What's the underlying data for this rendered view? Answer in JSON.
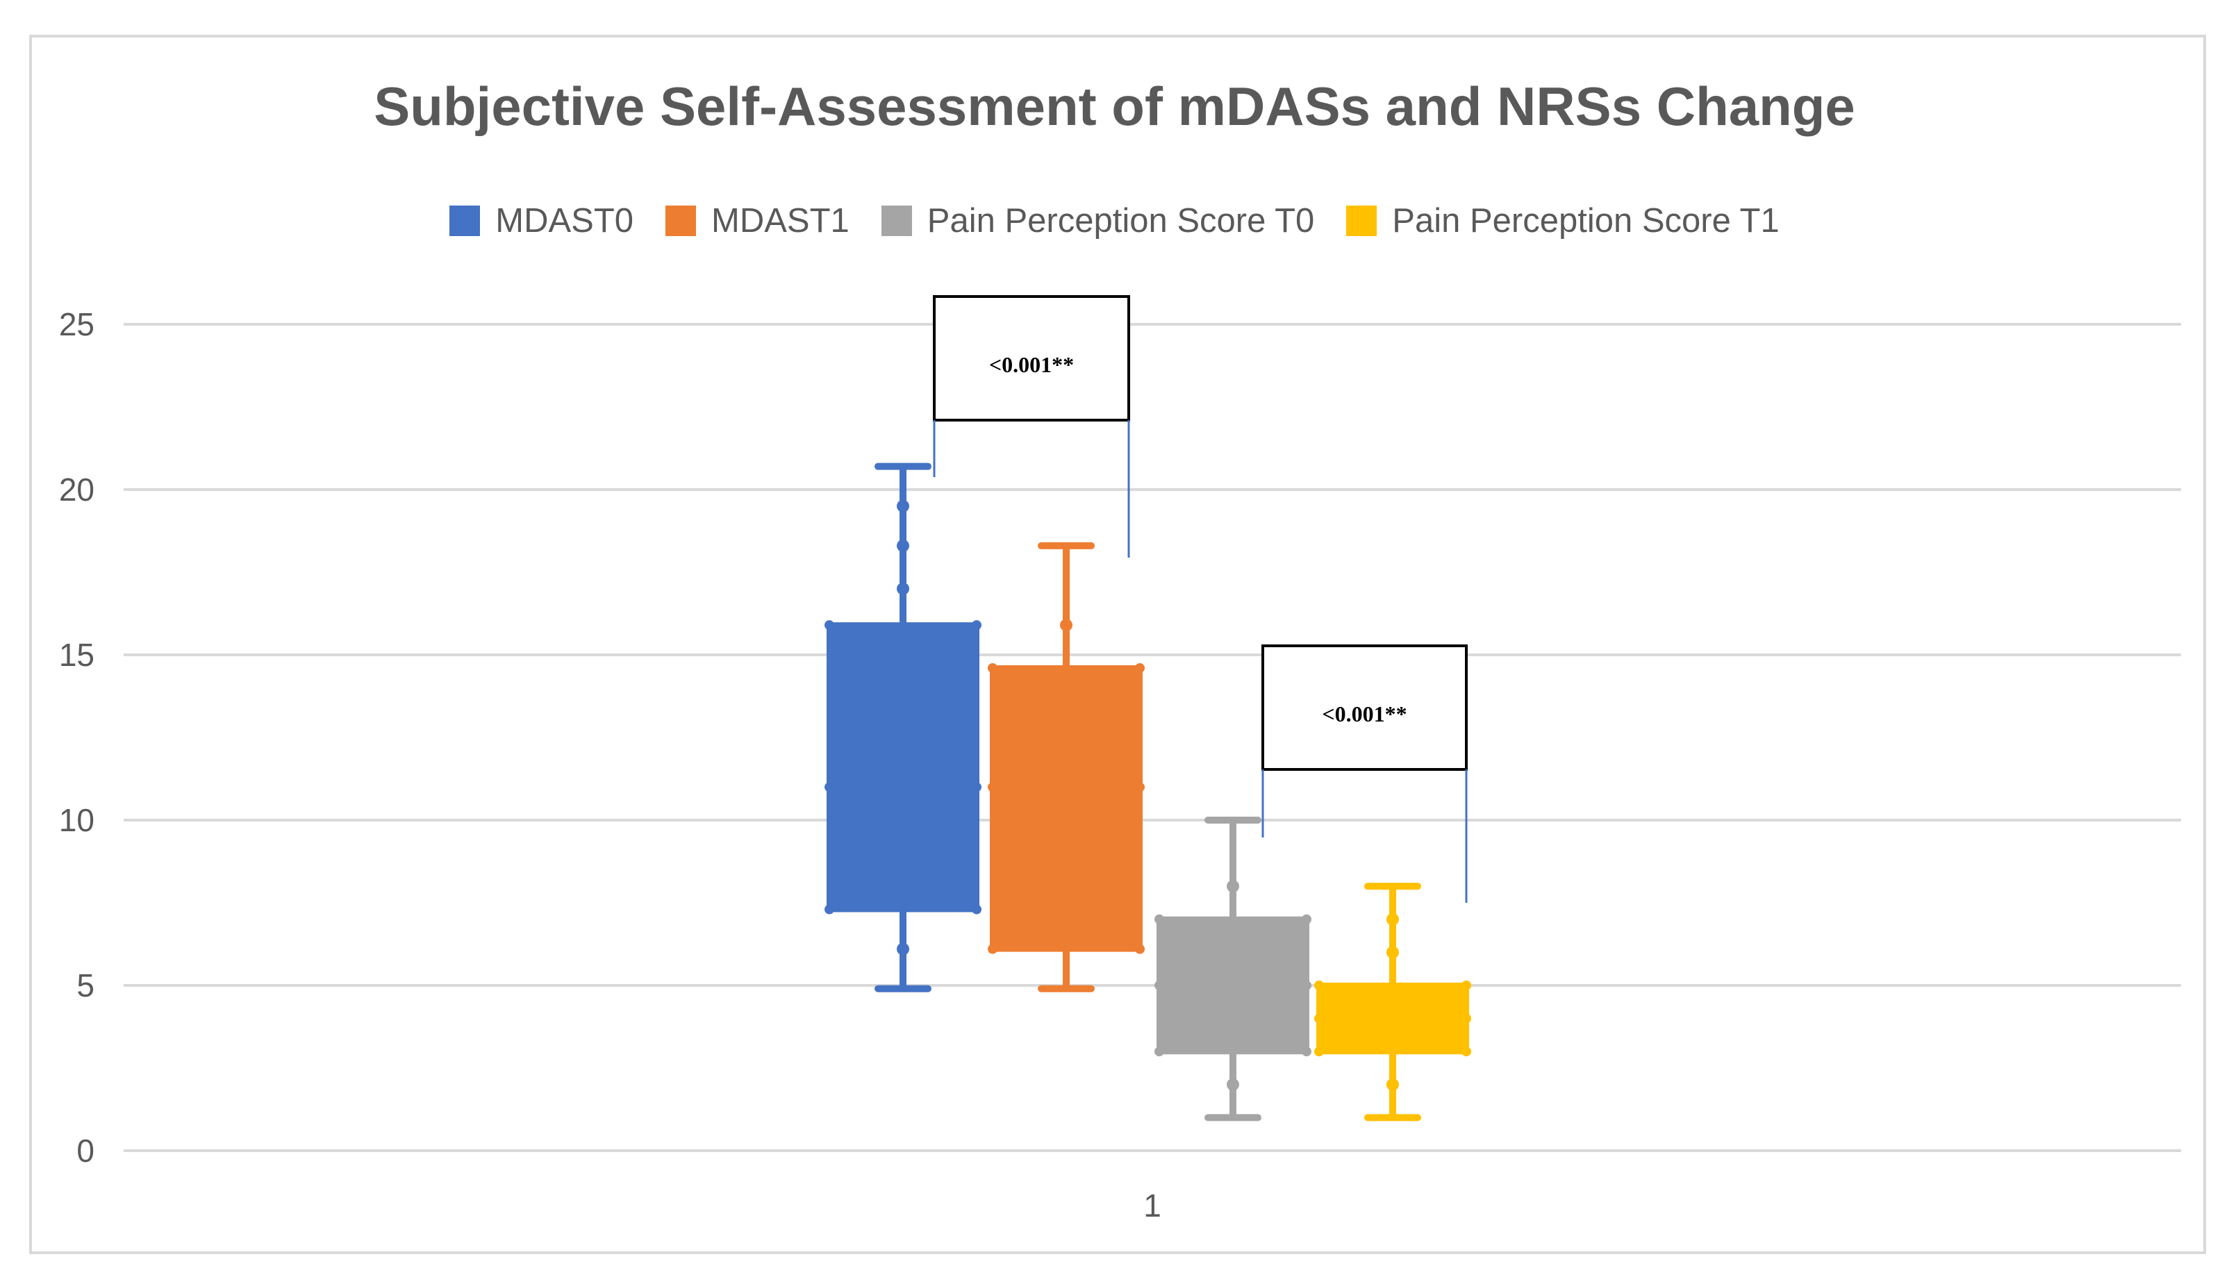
{
  "chart_data": {
    "type": "boxplot",
    "title": "Subjective Self-Assessment of mDASs and NRSs Change",
    "categories": [
      "1"
    ],
    "ylim": [
      0,
      25
    ],
    "yticks": [
      0,
      5,
      10,
      15,
      20,
      25
    ],
    "grid": true,
    "legend_position": "top",
    "series": [
      {
        "name": "MDAST0",
        "color": "#4472c4",
        "min": 4.9,
        "q1": 7.3,
        "median": 11,
        "q3": 15.9,
        "max": 20.7,
        "points": [
          6.1,
          17,
          18.3,
          19.5
        ]
      },
      {
        "name": "MDAST1",
        "color": "#ed7d31",
        "min": 4.9,
        "q1": 6.1,
        "median": 11,
        "q3": 14.6,
        "max": 18.3,
        "points": [
          15.9
        ]
      },
      {
        "name": "Pain Perception Score T0",
        "color": "#a5a5a5",
        "min": 1,
        "q1": 3,
        "median": 5,
        "q3": 7,
        "max": 10,
        "points": [
          2,
          8
        ]
      },
      {
        "name": "Pain Perception Score T1",
        "color": "#ffc000",
        "min": 1,
        "q1": 3,
        "median": 4,
        "q3": 5,
        "max": 8,
        "points": [
          2,
          6,
          7
        ]
      }
    ],
    "annotations": [
      {
        "text": "<0.001**",
        "between": [
          "MDAST0",
          "MDAST1"
        ]
      },
      {
        "text": "<0.001**",
        "between": [
          "Pain Perception Score T0",
          "Pain Perception Score T1"
        ]
      }
    ]
  }
}
